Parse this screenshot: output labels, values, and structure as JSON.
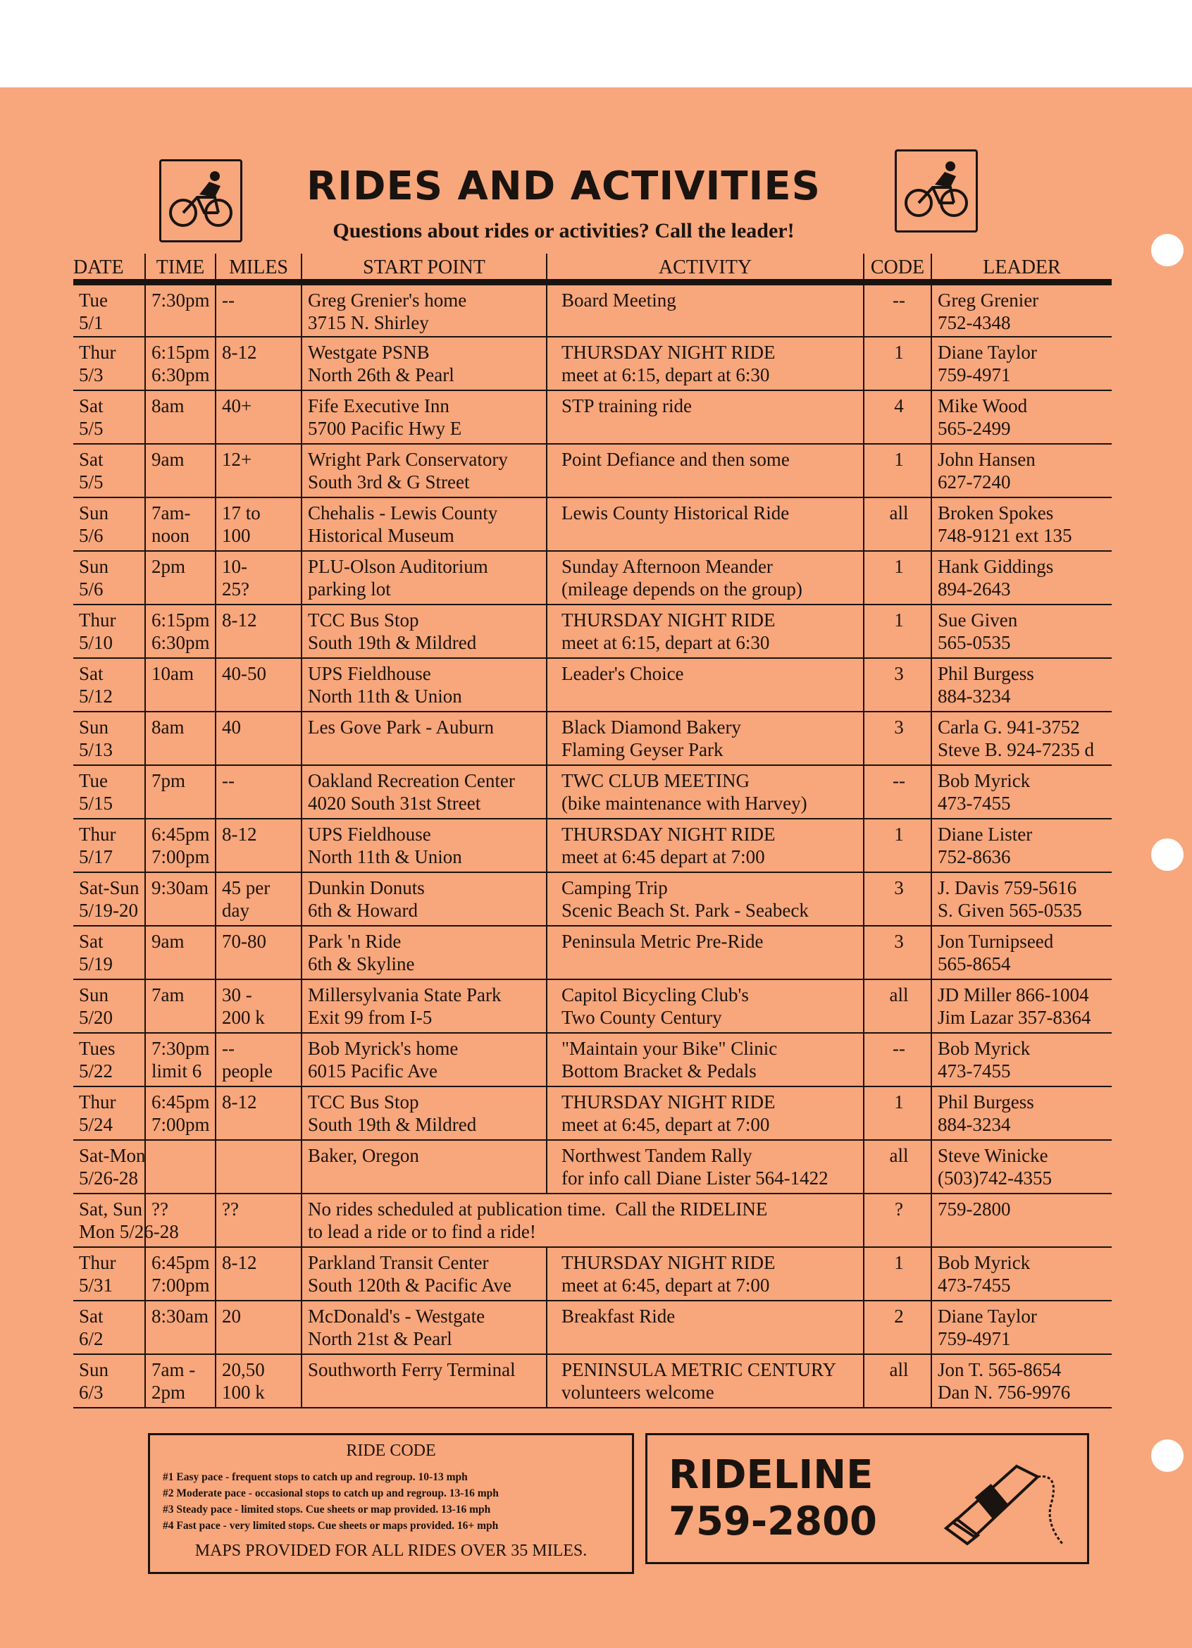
{
  "header": {
    "title": "RIDES AND ACTIVITIES",
    "subtitle": "Questions about rides or activities?  Call the leader!",
    "icons": [
      "bicycle-rider-icon",
      "bicycle-rider-icon"
    ]
  },
  "table": {
    "columns": [
      "DATE",
      "TIME",
      "MILES",
      "START POINT",
      "ACTIVITY",
      "CODE",
      "LEADER"
    ],
    "rows": [
      [
        "Tue\n5/1",
        "7:30pm",
        "--",
        "Greg Grenier's home\n3715 N. Shirley",
        "Board Meeting",
        "--",
        "Greg Grenier\n752-4348"
      ],
      [
        "Thur\n5/3",
        "6:15pm\n6:30pm",
        "8-12",
        "Westgate PSNB\nNorth 26th & Pearl",
        "THURSDAY NIGHT RIDE\nmeet at 6:15, depart at 6:30",
        "1",
        "Diane Taylor\n759-4971"
      ],
      [
        "Sat\n5/5",
        "8am",
        "40+",
        "Fife Executive Inn\n5700 Pacific Hwy E",
        "STP training ride",
        "4",
        "Mike Wood\n565-2499"
      ],
      [
        "Sat\n5/5",
        "9am",
        "12+",
        "Wright Park Conservatory\nSouth 3rd & G Street",
        "Point Defiance and then some",
        "1",
        "John Hansen\n627-7240"
      ],
      [
        "Sun\n5/6",
        "7am-\nnoon",
        "17 to\n100",
        "Chehalis - Lewis County\nHistorical Museum",
        "Lewis County Historical Ride",
        "all",
        "Broken Spokes\n748-9121 ext 135"
      ],
      [
        "Sun\n5/6",
        "2pm",
        "10-\n25?",
        "PLU-Olson Auditorium\nparking lot",
        "Sunday Afternoon Meander\n(mileage depends on the group)",
        "1",
        "Hank Giddings\n894-2643"
      ],
      [
        "Thur\n5/10",
        "6:15pm\n6:30pm",
        "8-12",
        "TCC Bus Stop\nSouth 19th & Mildred",
        "THURSDAY NIGHT RIDE\nmeet at 6:15, depart at 6:30",
        "1",
        "Sue Given\n565-0535"
      ],
      [
        "Sat\n5/12",
        "10am",
        "40-50",
        "UPS Fieldhouse\nNorth 11th & Union",
        "Leader's Choice",
        "3",
        "Phil Burgess\n884-3234"
      ],
      [
        "Sun\n5/13",
        "8am",
        "40",
        "Les Gove Park - Auburn",
        "Black Diamond Bakery\nFlaming Geyser Park",
        "3",
        "Carla G. 941-3752\nSteve B. 924-7235 d"
      ],
      [
        "Tue\n5/15",
        "7pm",
        "--",
        "Oakland Recreation Center\n4020 South 31st Street",
        "TWC CLUB MEETING\n(bike maintenance with Harvey)",
        "--",
        "Bob Myrick\n473-7455"
      ],
      [
        "Thur\n5/17",
        "6:45pm\n7:00pm",
        "8-12",
        "UPS Fieldhouse\nNorth 11th & Union",
        "THURSDAY NIGHT RIDE\nmeet at 6:45 depart at 7:00",
        "1",
        "Diane Lister\n752-8636"
      ],
      [
        "Sat-Sun\n5/19-20",
        "9:30am",
        "45 per\nday",
        "Dunkin Donuts\n6th & Howard",
        "Camping Trip\nScenic Beach St. Park - Seabeck",
        "3",
        "J. Davis 759-5616\nS. Given 565-0535"
      ],
      [
        "Sat\n5/19",
        "9am",
        "70-80",
        "Park 'n Ride\n6th & Skyline",
        "Peninsula Metric Pre-Ride",
        "3",
        "Jon Turnipseed\n565-8654"
      ],
      [
        "Sun\n5/20",
        "7am",
        "30 -\n200 k",
        "Millersylvania State Park\nExit 99 from I-5",
        "Capitol Bicycling Club's\nTwo County Century",
        "all",
        "JD Miller 866-1004\nJim Lazar 357-8364"
      ],
      [
        "Tues\n5/22",
        "7:30pm\nlimit 6",
        "--\npeople",
        "Bob Myrick's home\n6015 Pacific Ave",
        "\"Maintain your Bike\" Clinic\nBottom Bracket & Pedals",
        "--",
        "Bob Myrick\n473-7455"
      ],
      [
        "Thur\n5/24",
        "6:45pm\n7:00pm",
        "8-12",
        "TCC Bus Stop\nSouth 19th & Mildred",
        "THURSDAY NIGHT RIDE\nmeet at 6:45, depart at 7:00",
        "1",
        "Phil Burgess\n884-3234"
      ],
      [
        "Sat-Mon\n5/26-28",
        "",
        "",
        "Baker, Oregon",
        "Northwest Tandem Rally\nfor info call Diane Lister 564-1422",
        "all",
        "Steve Winicke\n(503)742-4355"
      ],
      [
        "Sat, Sun\nMon 5/26-28",
        "??",
        "??",
        "No rides scheduled at publication time.  Call the RIDELINE\nto lead a ride or to find a ride!",
        "",
        "?",
        "759-2800"
      ],
      [
        "Thur\n5/31",
        "6:45pm\n7:00pm",
        "8-12",
        "Parkland Transit Center\nSouth 120th & Pacific Ave",
        "THURSDAY NIGHT RIDE\nmeet at 6:45, depart at 7:00",
        "1",
        "Bob Myrick\n473-7455"
      ],
      [
        "Sat\n6/2",
        "8:30am",
        "20",
        "McDonald's - Westgate\nNorth 21st & Pearl",
        "Breakfast Ride",
        "2",
        "Diane Taylor\n759-4971"
      ],
      [
        "Sun\n6/3",
        "7am -\n2pm",
        "20,50\n100 k",
        "Southworth Ferry Terminal",
        "PENINSULA METRIC CENTURY\nvolunteers welcome",
        "all",
        "Jon T. 565-8654\nDan N. 756-9976"
      ]
    ]
  },
  "ride_code": {
    "title": "RIDE CODE",
    "items": [
      "#1  Easy pace - frequent stops to catch up and regroup.  10-13 mph",
      "#2  Moderate pace - occasional stops to catch up and regroup. 13-16 mph",
      "#3 Steady pace - limited stops.  Cue sheets or map provided.  13-16 mph",
      "#4  Fast pace - very limited stops.  Cue sheets or maps provided. 16+ mph"
    ],
    "note": "MAPS PROVIDED FOR ALL RIDES OVER 35 MILES."
  },
  "rideline": {
    "label": "RIDELINE",
    "number": "759-2800",
    "icon": "telephone-icon"
  },
  "colors": {
    "paper": "#f8a67b",
    "ink": "#1a1410"
  }
}
